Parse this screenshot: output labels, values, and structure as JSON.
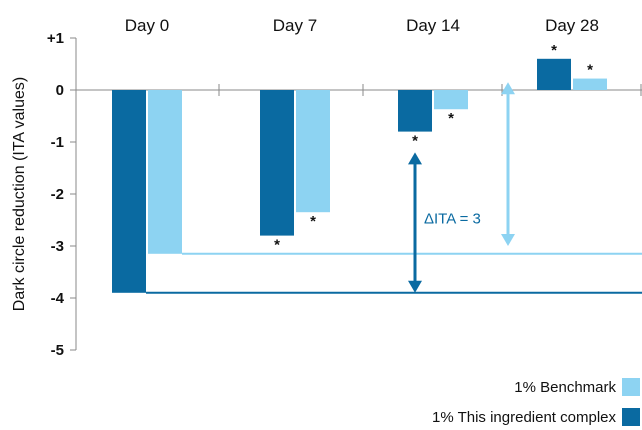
{
  "chart_data": {
    "type": "bar",
    "ylabel": "Dark circle reduction (ITA values)",
    "ylim": [
      -5,
      1
    ],
    "yticks": [
      {
        "value": 1,
        "label": "+1"
      },
      {
        "value": 0,
        "label": "0"
      },
      {
        "value": -1,
        "label": "-1"
      },
      {
        "value": -2,
        "label": "-2"
      },
      {
        "value": -3,
        "label": "-3"
      },
      {
        "value": -4,
        "label": "-4"
      },
      {
        "value": -5,
        "label": "-5"
      }
    ],
    "categories": [
      "Day 0",
      "Day 7",
      "Day 14",
      "Day 28"
    ],
    "series": [
      {
        "name": "1% This ingredient complex",
        "color": "#0a6aa1",
        "values": [
          -3.9,
          -2.8,
          -0.8,
          0.6
        ],
        "significance": [
          "",
          "*",
          "*",
          "*"
        ]
      },
      {
        "name": "1% Benchmark",
        "color": "#8dd3f2",
        "values": [
          -3.15,
          -2.35,
          -0.37,
          0.22
        ],
        "significance": [
          "",
          "*",
          "*",
          "*"
        ]
      }
    ],
    "reference_lines": [
      {
        "series": "1% Benchmark",
        "value": -3.15
      },
      {
        "series": "1% This ingredient complex",
        "value": -3.9
      }
    ],
    "annotations": [
      {
        "text": "ΔITA = 3",
        "series": "1% This ingredient complex",
        "from": -3.9,
        "to": -1.2
      },
      {
        "text": "",
        "series": "1% Benchmark",
        "from": -3.0,
        "to": 0.15
      }
    ],
    "legend": "bottom-right"
  },
  "legend": [
    {
      "label": "1% Benchmark",
      "color": "#8dd3f2"
    },
    {
      "label": "1% This ingredient complex",
      "color": "#0a6aa1"
    }
  ]
}
